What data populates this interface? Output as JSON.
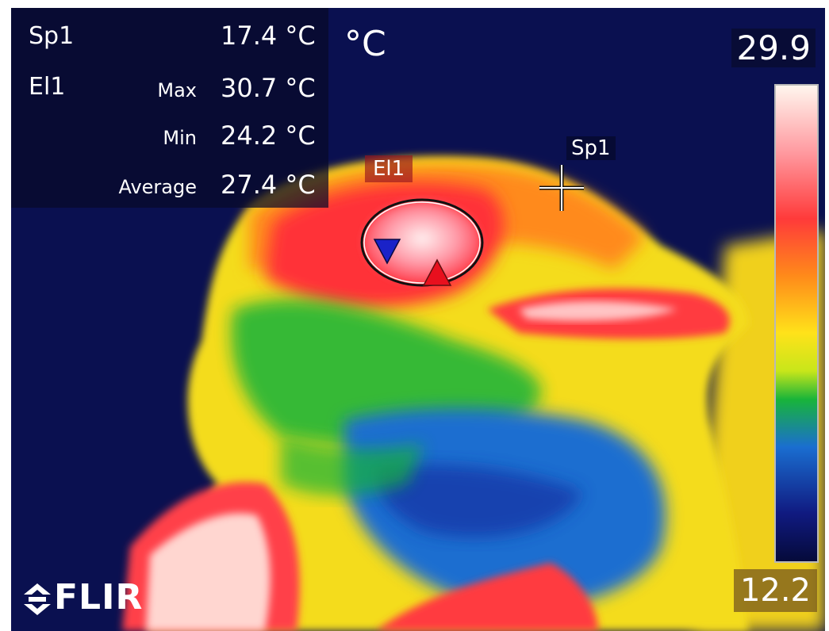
{
  "readouts": {
    "spot": {
      "name": "Sp1",
      "value": "17.4 °C"
    },
    "ellipse": {
      "name": "El1",
      "max_label": "Max",
      "max_value": "30.7 °C",
      "min_label": "Min",
      "min_value": "24.2 °C",
      "avg_label": "Average",
      "avg_value": "27.4 °C"
    }
  },
  "unit": "°C",
  "scale": {
    "max": "29.9",
    "min": "12.2"
  },
  "markers": {
    "spot_label": "Sp1",
    "ellipse_label": "El1"
  },
  "brand": {
    "name": "FLIR",
    "icon": "flir-logo-icon"
  },
  "colors": {
    "background": "#0a1050",
    "palette": [
      "#fff6ee",
      "#ff9aa0",
      "#ff3a3a",
      "#ff8a1a",
      "#ffe21a",
      "#c8e61a",
      "#18b43a",
      "#1a6ed0",
      "#101a80",
      "#050a3a"
    ],
    "max_marker": "#e8101e",
    "min_marker": "#1a22c8"
  }
}
